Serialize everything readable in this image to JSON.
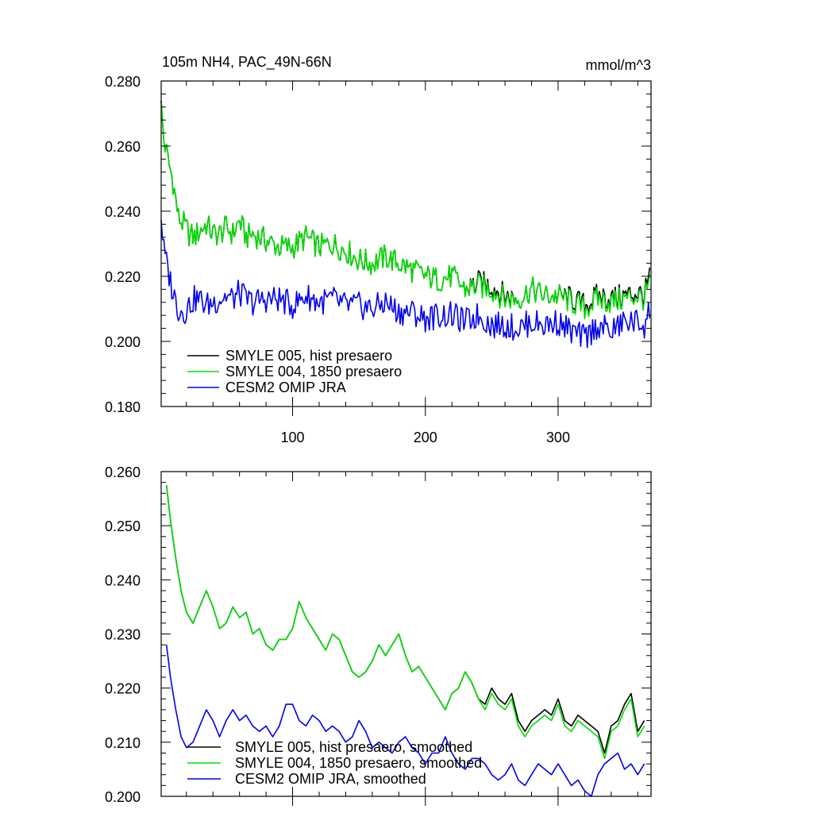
{
  "chart_data": [
    {
      "type": "line",
      "title": "105m NH4, PAC_49N-66N",
      "units": "mmol/m^3",
      "xlabel": "",
      "ylabel": "",
      "xlim": [
        1,
        370
      ],
      "ylim": [
        0.18,
        0.28
      ],
      "x_ticks": [
        100,
        200,
        300
      ],
      "x_tick_labels": [
        "100",
        "200",
        "300"
      ],
      "y_ticks": [
        0.18,
        0.2,
        0.22,
        0.24,
        0.26,
        0.28
      ],
      "y_tick_labels": [
        "0.180",
        "0.200",
        "0.220",
        "0.240",
        "0.260",
        "0.280"
      ],
      "grid": false,
      "legend_position": "bottom-left",
      "series": [
        {
          "name": "SMYLE 005, hist presaero",
          "color": "#000000",
          "x": [
            1,
            3,
            6,
            10,
            14,
            18,
            22,
            26,
            30,
            35,
            40,
            45,
            50,
            55,
            60,
            65,
            70,
            80,
            90,
            100,
            110,
            120,
            130,
            140,
            150,
            160,
            170,
            180,
            190,
            200,
            210,
            220,
            230,
            240,
            250,
            260,
            270,
            280,
            290,
            300,
            310,
            320,
            330,
            340,
            350,
            360,
            365,
            369
          ],
          "y": [
            0.272,
            0.262,
            0.256,
            0.249,
            0.238,
            0.236,
            0.233,
            0.232,
            0.234,
            0.236,
            0.233,
            0.233,
            0.235,
            0.233,
            0.237,
            0.232,
            0.233,
            0.231,
            0.229,
            0.229,
            0.232,
            0.229,
            0.23,
            0.228,
            0.225,
            0.224,
            0.226,
            0.224,
            0.222,
            0.22,
            0.219,
            0.22,
            0.216,
            0.218,
            0.217,
            0.214,
            0.213,
            0.216,
            0.214,
            0.214,
            0.213,
            0.211,
            0.214,
            0.213,
            0.214,
            0.215,
            0.214,
            0.22
          ]
        },
        {
          "name": "SMYLE 004, 1850 presaero",
          "color": "#00dd00",
          "x": [
            1,
            3,
            6,
            10,
            14,
            18,
            22,
            26,
            30,
            35,
            40,
            45,
            50,
            55,
            60,
            65,
            70,
            80,
            90,
            100,
            110,
            120,
            130,
            140,
            150,
            160,
            170,
            180,
            190,
            200,
            210,
            220,
            230,
            240,
            250,
            260,
            270,
            280,
            290,
            300,
            310,
            320,
            330,
            340,
            350,
            360,
            365,
            369
          ],
          "y": [
            0.272,
            0.262,
            0.256,
            0.249,
            0.238,
            0.236,
            0.233,
            0.232,
            0.234,
            0.236,
            0.233,
            0.233,
            0.235,
            0.233,
            0.237,
            0.232,
            0.233,
            0.231,
            0.229,
            0.229,
            0.232,
            0.229,
            0.23,
            0.228,
            0.225,
            0.224,
            0.226,
            0.224,
            0.222,
            0.22,
            0.219,
            0.22,
            0.216,
            0.217,
            0.216,
            0.213,
            0.213,
            0.216,
            0.214,
            0.214,
            0.212,
            0.21,
            0.213,
            0.212,
            0.213,
            0.214,
            0.213,
            0.218
          ]
        },
        {
          "name": "CESM2 OMIP JRA",
          "color": "#0000ee",
          "x": [
            1,
            3,
            6,
            10,
            14,
            18,
            22,
            26,
            30,
            35,
            40,
            45,
            50,
            55,
            60,
            65,
            70,
            80,
            90,
            100,
            110,
            120,
            130,
            140,
            150,
            160,
            170,
            180,
            190,
            200,
            210,
            220,
            230,
            240,
            250,
            260,
            270,
            280,
            290,
            300,
            310,
            320,
            330,
            340,
            350,
            360,
            365,
            369
          ],
          "y": [
            0.238,
            0.228,
            0.222,
            0.215,
            0.21,
            0.209,
            0.211,
            0.213,
            0.213,
            0.211,
            0.212,
            0.213,
            0.214,
            0.213,
            0.215,
            0.213,
            0.212,
            0.213,
            0.213,
            0.211,
            0.214,
            0.212,
            0.213,
            0.211,
            0.211,
            0.21,
            0.212,
            0.209,
            0.209,
            0.207,
            0.208,
            0.208,
            0.206,
            0.208,
            0.205,
            0.205,
            0.204,
            0.206,
            0.205,
            0.206,
            0.203,
            0.201,
            0.205,
            0.203,
            0.206,
            0.206,
            0.205,
            0.21
          ]
        }
      ]
    },
    {
      "type": "line",
      "title": "",
      "xlabel": "",
      "ylabel": "",
      "xlim": [
        1,
        370
      ],
      "ylim": [
        0.2,
        0.26
      ],
      "x_ticks": [
        100,
        200,
        300
      ],
      "y_ticks": [
        0.2,
        0.21,
        0.22,
        0.23,
        0.24,
        0.25,
        0.26
      ],
      "y_tick_labels": [
        "0.200",
        "0.210",
        "0.220",
        "0.230",
        "0.240",
        "0.250",
        "0.260"
      ],
      "grid": false,
      "legend_position": "bottom-center",
      "series": [
        {
          "name": "SMYLE 005, hist presaero, smoothed",
          "color": "#000000",
          "x": [
            5,
            8,
            12,
            16,
            20,
            25,
            30,
            35,
            40,
            45,
            50,
            55,
            60,
            65,
            70,
            75,
            80,
            85,
            90,
            95,
            100,
            105,
            110,
            115,
            120,
            125,
            130,
            135,
            140,
            145,
            150,
            155,
            160,
            165,
            170,
            175,
            180,
            185,
            190,
            195,
            200,
            205,
            210,
            215,
            220,
            225,
            230,
            235,
            240,
            245,
            250,
            255,
            260,
            265,
            270,
            275,
            280,
            285,
            290,
            295,
            300,
            305,
            310,
            315,
            320,
            325,
            330,
            335,
            340,
            345,
            350,
            355,
            360,
            365
          ],
          "y": [
            0.2575,
            0.251,
            0.244,
            0.238,
            0.234,
            0.232,
            0.235,
            0.238,
            0.235,
            0.231,
            0.232,
            0.235,
            0.233,
            0.234,
            0.23,
            0.231,
            0.228,
            0.227,
            0.229,
            0.229,
            0.231,
            0.236,
            0.233,
            0.231,
            0.229,
            0.227,
            0.23,
            0.229,
            0.226,
            0.223,
            0.222,
            0.223,
            0.225,
            0.228,
            0.226,
            0.228,
            0.23,
            0.226,
            0.223,
            0.224,
            0.222,
            0.22,
            0.218,
            0.216,
            0.219,
            0.22,
            0.223,
            0.221,
            0.218,
            0.217,
            0.22,
            0.218,
            0.217,
            0.219,
            0.214,
            0.212,
            0.214,
            0.215,
            0.216,
            0.215,
            0.218,
            0.214,
            0.213,
            0.215,
            0.214,
            0.213,
            0.212,
            0.208,
            0.213,
            0.214,
            0.217,
            0.219,
            0.212,
            0.214
          ]
        },
        {
          "name": "SMYLE 004, 1850 presaero, smoothed",
          "color": "#00dd00",
          "x": [
            5,
            8,
            12,
            16,
            20,
            25,
            30,
            35,
            40,
            45,
            50,
            55,
            60,
            65,
            70,
            75,
            80,
            85,
            90,
            95,
            100,
            105,
            110,
            115,
            120,
            125,
            130,
            135,
            140,
            145,
            150,
            155,
            160,
            165,
            170,
            175,
            180,
            185,
            190,
            195,
            200,
            205,
            210,
            215,
            220,
            225,
            230,
            235,
            240,
            245,
            250,
            255,
            260,
            265,
            270,
            275,
            280,
            285,
            290,
            295,
            300,
            305,
            310,
            315,
            320,
            325,
            330,
            335,
            340,
            345,
            350,
            355,
            360,
            365
          ],
          "y": [
            0.2575,
            0.251,
            0.244,
            0.238,
            0.234,
            0.232,
            0.235,
            0.238,
            0.235,
            0.231,
            0.232,
            0.235,
            0.233,
            0.234,
            0.23,
            0.231,
            0.228,
            0.227,
            0.229,
            0.229,
            0.231,
            0.236,
            0.233,
            0.231,
            0.229,
            0.227,
            0.23,
            0.229,
            0.226,
            0.223,
            0.222,
            0.223,
            0.225,
            0.228,
            0.226,
            0.228,
            0.23,
            0.226,
            0.223,
            0.224,
            0.222,
            0.22,
            0.218,
            0.216,
            0.219,
            0.22,
            0.223,
            0.221,
            0.218,
            0.216,
            0.219,
            0.217,
            0.216,
            0.218,
            0.213,
            0.211,
            0.213,
            0.214,
            0.215,
            0.214,
            0.217,
            0.213,
            0.212,
            0.214,
            0.213,
            0.212,
            0.211,
            0.207,
            0.212,
            0.213,
            0.216,
            0.218,
            0.211,
            0.213
          ]
        },
        {
          "name": "CESM2 OMIP JRA, smoothed",
          "color": "#0000ee",
          "x": [
            5,
            8,
            12,
            16,
            20,
            25,
            30,
            35,
            40,
            45,
            50,
            55,
            60,
            65,
            70,
            75,
            80,
            85,
            90,
            95,
            100,
            105,
            110,
            115,
            120,
            125,
            130,
            135,
            140,
            145,
            150,
            155,
            160,
            165,
            170,
            175,
            180,
            185,
            190,
            195,
            200,
            205,
            210,
            215,
            220,
            225,
            230,
            235,
            240,
            245,
            250,
            255,
            260,
            265,
            270,
            275,
            280,
            285,
            290,
            295,
            300,
            305,
            310,
            315,
            320,
            325,
            330,
            335,
            340,
            345,
            350,
            355,
            360,
            365
          ],
          "y": [
            0.228,
            0.222,
            0.216,
            0.211,
            0.209,
            0.21,
            0.213,
            0.216,
            0.214,
            0.211,
            0.214,
            0.216,
            0.214,
            0.215,
            0.213,
            0.212,
            0.213,
            0.211,
            0.213,
            0.217,
            0.217,
            0.214,
            0.213,
            0.215,
            0.214,
            0.212,
            0.213,
            0.212,
            0.21,
            0.211,
            0.214,
            0.212,
            0.209,
            0.21,
            0.209,
            0.208,
            0.21,
            0.211,
            0.209,
            0.208,
            0.206,
            0.208,
            0.208,
            0.211,
            0.208,
            0.206,
            0.205,
            0.207,
            0.207,
            0.206,
            0.204,
            0.203,
            0.204,
            0.206,
            0.203,
            0.202,
            0.204,
            0.206,
            0.205,
            0.204,
            0.206,
            0.204,
            0.202,
            0.203,
            0.201,
            0.2,
            0.204,
            0.206,
            0.207,
            0.208,
            0.205,
            0.206,
            0.204,
            0.206
          ]
        }
      ]
    }
  ]
}
